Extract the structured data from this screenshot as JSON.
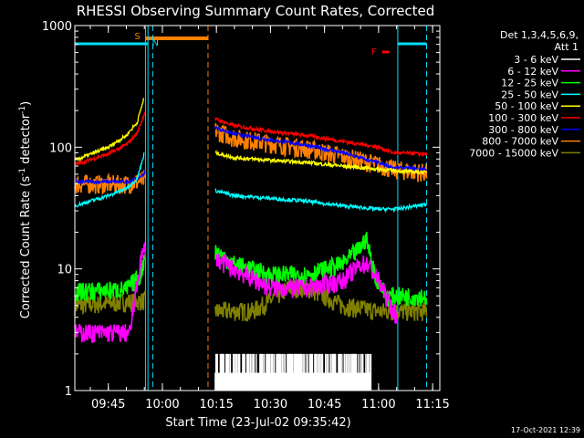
{
  "chart_data": {
    "type": "line",
    "title": "RHESSI Observing Summary Count Rates, Corrected",
    "xlabel": "Start Time (23-Jul-02 09:35:42)",
    "ylabel_main": "Corrected Count Rate (s",
    "ylabel_sup1": "-1",
    "ylabel_mid": " detector",
    "ylabel_sup2": "-1",
    "ylabel_end": ")",
    "y_scale": "log",
    "ylim": [
      1,
      1000
    ],
    "xlim": [
      "09:35:42",
      "11:17:00"
    ],
    "x_ticks": [
      "09:45",
      "10:00",
      "10:15",
      "10:30",
      "10:45",
      "11:00",
      "11:15"
    ],
    "y_ticks": [
      "1",
      "10",
      "100",
      "1000"
    ],
    "legend_header": [
      "Det 1,3,4,5,6,9,",
      "Att 1"
    ],
    "legend_position": "top-right",
    "footer_date": "17-Oct-2021 12:39",
    "flags": {
      "S_label": "S",
      "N_label": "N",
      "F_label": "F",
      "S": {
        "start": "09:55:20",
        "end": "10:12:40",
        "color": "#ff8000"
      },
      "N": {
        "spans": [
          [
            "09:35:42",
            "09:56:00"
          ],
          [
            "11:05:20",
            "11:13:20"
          ]
        ],
        "color": "#00e0ff"
      },
      "F": {
        "at": "11:02:00",
        "color": "#ff0000"
      }
    },
    "markers": [
      {
        "time": "09:56:00",
        "color": "#00e0ff",
        "style": "solid"
      },
      {
        "time": "09:57:20",
        "color": "#00e0ff",
        "style": "dashed"
      },
      {
        "time": "09:55:20",
        "color": "#ff8000",
        "style": "solid"
      },
      {
        "time": "10:12:40",
        "color": "#ff8000",
        "style": "dashed"
      },
      {
        "time": "11:05:20",
        "color": "#00e0ff",
        "style": "solid"
      },
      {
        "time": "11:13:20",
        "color": "#00e0ff",
        "style": "dashed"
      }
    ],
    "series": [
      {
        "name": "3 - 6 keV",
        "color": "#ffffff",
        "segments": [
          {
            "start": "10:14:40",
            "end": "10:58:00",
            "base": 1.4,
            "spike": 2.0,
            "pattern": "black_spikes"
          }
        ]
      },
      {
        "name": "6 - 12 keV",
        "color": "#ff00ff",
        "segments": [
          {
            "points": [
              [
                "09:35:42",
                3.0
              ],
              [
                "09:51:00",
                3.0
              ],
              [
                "09:54:00",
                12
              ],
              [
                "09:55:20",
                15
              ]
            ]
          },
          {
            "points": [
              [
                "10:15:00",
                12
              ],
              [
                "10:20:00",
                10
              ],
              [
                "10:30:00",
                7
              ],
              [
                "10:40:00",
                7
              ],
              [
                "10:50:00",
                8
              ],
              [
                "10:55:00",
                11
              ],
              [
                "10:57:00",
                11
              ],
              [
                "11:00:00",
                8
              ],
              [
                "11:05:00",
                4
              ]
            ]
          }
        ]
      },
      {
        "name": "12 - 25 keV",
        "color": "#00ff00",
        "segments": [
          {
            "points": [
              [
                "09:35:42",
                6.5
              ],
              [
                "09:50:00",
                6.8
              ],
              [
                "09:54:00",
                9
              ],
              [
                "09:55:20",
                14
              ]
            ]
          },
          {
            "points": [
              [
                "10:14:40",
                14
              ],
              [
                "10:20:00",
                11
              ],
              [
                "10:30:00",
                9
              ],
              [
                "10:40:00",
                9
              ],
              [
                "10:50:00",
                11
              ],
              [
                "10:55:00",
                15
              ],
              [
                "10:56:30",
                18
              ],
              [
                "10:59:00",
                9
              ],
              [
                "11:02:00",
                6
              ],
              [
                "11:13:20",
                6
              ]
            ]
          }
        ]
      },
      {
        "name": "25 - 50 keV",
        "color": "#00ffff",
        "segments": [
          {
            "points": [
              [
                "09:35:42",
                33
              ],
              [
                "09:45:00",
                40
              ],
              [
                "09:50:00",
                46
              ],
              [
                "09:53:00",
                55
              ],
              [
                "09:55:00",
                90
              ]
            ]
          },
          {
            "points": [
              [
                "10:14:40",
                44
              ],
              [
                "10:20:00",
                40
              ],
              [
                "10:30:00",
                38
              ],
              [
                "10:40:00",
                36
              ],
              [
                "10:50:00",
                33
              ],
              [
                "11:00:00",
                31
              ],
              [
                "11:05:00",
                31
              ],
              [
                "11:13:20",
                34
              ]
            ]
          }
        ]
      },
      {
        "name": "50 - 100 keV",
        "color": "#ffff00",
        "segments": [
          {
            "points": [
              [
                "09:35:42",
                78
              ],
              [
                "09:45:00",
                100
              ],
              [
                "09:50:00",
                125
              ],
              [
                "09:53:00",
                160
              ],
              [
                "09:55:00",
                260
              ]
            ]
          },
          {
            "points": [
              [
                "10:14:40",
                90
              ],
              [
                "10:20:00",
                82
              ],
              [
                "10:30:00",
                78
              ],
              [
                "10:40:00",
                75
              ],
              [
                "10:50:00",
                70
              ],
              [
                "11:00:00",
                66
              ],
              [
                "11:05:00",
                64
              ],
              [
                "11:13:20",
                62
              ]
            ]
          }
        ]
      },
      {
        "name": "100 - 300 keV",
        "color": "#ff0000",
        "segments": [
          {
            "points": [
              [
                "09:35:42",
                72
              ],
              [
                "09:45:00",
                88
              ],
              [
                "09:50:00",
                105
              ],
              [
                "09:53:00",
                130
              ],
              [
                "09:55:20",
                200
              ]
            ]
          },
          {
            "points": [
              [
                "10:14:40",
                170
              ],
              [
                "10:20:00",
                150
              ],
              [
                "10:30:00",
                135
              ],
              [
                "10:40:00",
                125
              ],
              [
                "10:50:00",
                112
              ],
              [
                "11:00:00",
                100
              ],
              [
                "11:04:00",
                90
              ],
              [
                "11:13:20",
                88
              ]
            ]
          }
        ]
      },
      {
        "name": "300 - 800 keV",
        "color": "#0000ff",
        "segments": [
          {
            "points": [
              [
                "09:35:42",
                52
              ],
              [
                "09:50:00",
                52
              ],
              [
                "09:53:00",
                55
              ],
              [
                "09:55:20",
                62
              ]
            ]
          },
          {
            "points": [
              [
                "10:14:40",
                145
              ],
              [
                "10:20:00",
                128
              ],
              [
                "10:30:00",
                115
              ],
              [
                "10:40:00",
                104
              ],
              [
                "10:50:00",
                90
              ],
              [
                "11:00:00",
                74
              ],
              [
                "11:04:00",
                68
              ],
              [
                "11:13:20",
                66
              ]
            ]
          }
        ]
      },
      {
        "name": "800 - 7000 keV",
        "color": "#ff8000",
        "segments": [
          {
            "points": [
              [
                "09:35:42",
                50
              ],
              [
                "09:50:00",
                50
              ],
              [
                "09:53:00",
                52
              ],
              [
                "09:55:20",
                55
              ]
            ]
          },
          {
            "points": [
              [
                "10:14:40",
                138
              ],
              [
                "10:20:00",
                120
              ],
              [
                "10:30:00",
                108
              ],
              [
                "10:40:00",
                98
              ],
              [
                "10:50:00",
                85
              ],
              [
                "11:00:00",
                72
              ],
              [
                "11:04:00",
                66
              ],
              [
                "11:13:20",
                62
              ]
            ]
          }
        ]
      },
      {
        "name": "7000 - 15000 keV",
        "color": "#808000",
        "segments": [
          {
            "points": [
              [
                "09:35:42",
                5.0
              ],
              [
                "09:55:20",
                5.5
              ]
            ]
          },
          {
            "points": [
              [
                "10:14:40",
                4.5
              ],
              [
                "10:25:00",
                4.5
              ],
              [
                "10:30:00",
                5.5
              ],
              [
                "10:35:00",
                7
              ],
              [
                "10:40:00",
                7
              ],
              [
                "10:45:00",
                6
              ],
              [
                "10:50:00",
                5
              ],
              [
                "11:00:00",
                4.5
              ],
              [
                "11:13:20",
                4.5
              ]
            ]
          }
        ]
      }
    ]
  }
}
